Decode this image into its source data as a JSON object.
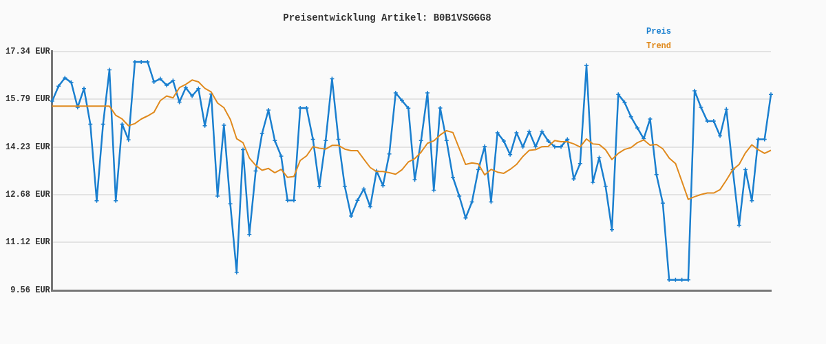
{
  "chart_data": {
    "type": "line",
    "title": "Preisentwicklung Artikel: B0B1VSGGG8",
    "categories": [
      null,
      null,
      null,
      null,
      null,
      null,
      null,
      null,
      null,
      null,
      null,
      null,
      null,
      null,
      null,
      null,
      null,
      null,
      null,
      null,
      null,
      null,
      null,
      null,
      null,
      null,
      null,
      null,
      null,
      null,
      null,
      null,
      null,
      null,
      null,
      null,
      null,
      null,
      null,
      null,
      null,
      null,
      null,
      null,
      null,
      null,
      null,
      null,
      null,
      null,
      null,
      null,
      null,
      null,
      null,
      null,
      null,
      null,
      null,
      null,
      null,
      null,
      null,
      null,
      null,
      null,
      null,
      null,
      null,
      null,
      null,
      null,
      null,
      null,
      null,
      null,
      null,
      null,
      null,
      null,
      null,
      null,
      null,
      null,
      null,
      null,
      null,
      null,
      null,
      null,
      null,
      null,
      null,
      null,
      null,
      null,
      null,
      null,
      null,
      null,
      null,
      null,
      null,
      null,
      null,
      null,
      null,
      null,
      null,
      null,
      null,
      null,
      null,
      null
    ],
    "series": [
      {
        "name": "Preis",
        "color": "#1a7fcf",
        "marker": "cross",
        "values": [
          15.72,
          16.21,
          16.48,
          16.33,
          15.52,
          16.13,
          14.97,
          12.48,
          14.97,
          16.74,
          12.48,
          14.97,
          14.46,
          17.0,
          17.0,
          17.0,
          16.35,
          16.45,
          16.24,
          16.39,
          15.69,
          16.16,
          15.89,
          16.13,
          14.92,
          15.95,
          12.63,
          14.94,
          12.38,
          10.15,
          14.14,
          11.38,
          13.45,
          14.67,
          15.43,
          14.44,
          13.93,
          12.49,
          12.49,
          15.5,
          15.5,
          14.48,
          12.94,
          14.44,
          16.45,
          14.48,
          12.95,
          11.98,
          12.49,
          12.86,
          12.28,
          13.45,
          12.97,
          14.0,
          15.99,
          15.74,
          15.49,
          13.16,
          14.44,
          15.99,
          12.82,
          15.5,
          14.44,
          13.24,
          12.63,
          11.92,
          12.44,
          13.49,
          14.25,
          12.44,
          14.69,
          14.42,
          13.98,
          14.69,
          14.23,
          14.73,
          14.24,
          14.73,
          14.42,
          14.24,
          14.24,
          14.48,
          13.19,
          13.69,
          16.88,
          13.08,
          13.88,
          12.95,
          11.54,
          15.94,
          15.68,
          15.21,
          14.85,
          14.5,
          15.14,
          13.33,
          12.4,
          9.9,
          9.9,
          9.9,
          9.9,
          16.06,
          15.52,
          15.07,
          15.07,
          14.59,
          15.46,
          13.49,
          11.68,
          13.49,
          12.48,
          14.48,
          14.48,
          15.94
        ]
      },
      {
        "name": "Trend",
        "color": "#e08a1e",
        "marker": "none",
        "values": [
          15.56,
          15.56,
          15.56,
          15.56,
          15.56,
          15.56,
          15.56,
          15.56,
          15.56,
          15.56,
          15.26,
          15.14,
          14.92,
          14.99,
          15.14,
          15.24,
          15.36,
          15.74,
          15.89,
          15.83,
          16.16,
          16.27,
          16.41,
          16.35,
          16.14,
          16.02,
          15.66,
          15.51,
          15.13,
          14.5,
          14.37,
          13.87,
          13.63,
          13.47,
          13.53,
          13.39,
          13.5,
          13.24,
          13.27,
          13.79,
          13.94,
          14.24,
          14.19,
          14.16,
          14.28,
          14.28,
          14.16,
          14.11,
          14.11,
          13.83,
          13.56,
          13.43,
          13.43,
          13.39,
          13.34,
          13.49,
          13.74,
          13.85,
          14.06,
          14.35,
          14.43,
          14.62,
          14.76,
          14.7,
          14.18,
          13.66,
          13.71,
          13.68,
          13.32,
          13.5,
          13.41,
          13.37,
          13.5,
          13.66,
          13.92,
          14.12,
          14.14,
          14.24,
          14.25,
          14.44,
          14.4,
          14.4,
          14.33,
          14.23,
          14.49,
          14.33,
          14.31,
          14.14,
          13.82,
          14.02,
          14.15,
          14.21,
          14.37,
          14.46,
          14.29,
          14.31,
          14.17,
          13.87,
          13.69,
          13.11,
          12.52,
          12.61,
          12.68,
          12.73,
          12.73,
          12.84,
          13.15,
          13.49,
          13.66,
          14.04,
          14.3,
          14.14,
          14.02,
          14.12
        ]
      }
    ],
    "ylim": [
      9.56,
      17.34
    ],
    "yticks": [
      {
        "value": 9.56,
        "label": "9.56 EUR"
      },
      {
        "value": 11.12,
        "label": "11.12 EUR"
      },
      {
        "value": 12.68,
        "label": "12.68 EUR"
      },
      {
        "value": 14.23,
        "label": "14.23 EUR"
      },
      {
        "value": 15.79,
        "label": "15.79 EUR"
      },
      {
        "value": 17.34,
        "label": "17.34 EUR"
      }
    ],
    "grid": "y",
    "legend": "top right",
    "tick_labels": "y"
  }
}
